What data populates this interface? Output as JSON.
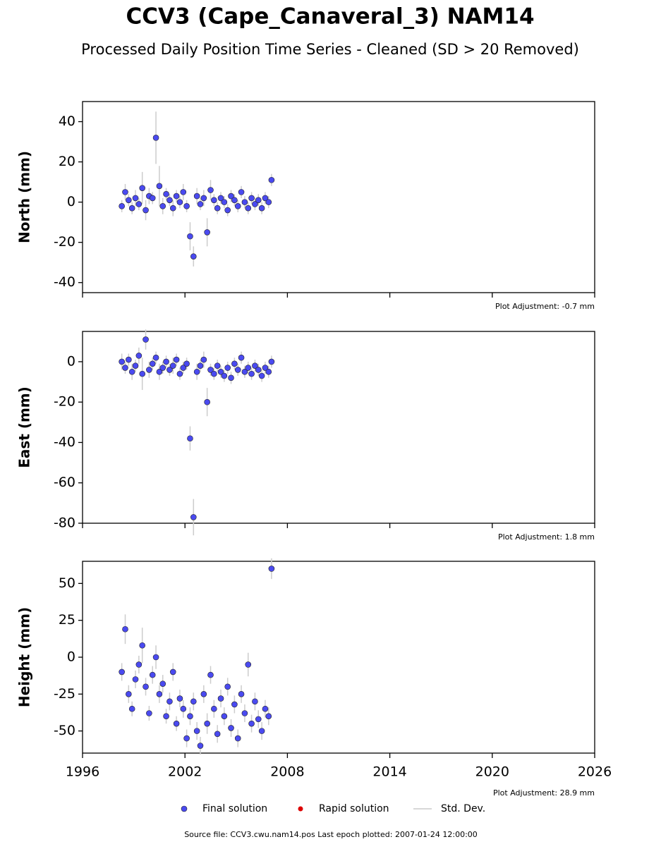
{
  "title": "CCV3 (Cape_Canaveral_3) NAM14",
  "subtitle": "Processed Daily Position Time Series - Cleaned (SD > 20 Removed)",
  "legend": [
    {
      "name": "Final solution",
      "color": "#4a4af0"
    },
    {
      "name": "Rapid solution",
      "color": "#dd0000"
    },
    {
      "name": "Std. Dev.",
      "color": "#cccccc"
    }
  ],
  "source": "Source file: CCV3.cwu.nam14.pos  Last epoch plotted: 2007-01-24 12:00:00",
  "chart_data": [
    {
      "type": "scatter",
      "y_label": "North (mm)",
      "annotation": "Plot Adjustment: -0.7 mm",
      "color": "#4a4af0",
      "error_color": "#cccccc",
      "x": [
        1998.3,
        1998.5,
        1998.7,
        1998.9,
        1999.1,
        1999.3,
        1999.5,
        1999.7,
        1999.9,
        2000.1,
        2000.3,
        2000.5,
        2000.7,
        2000.9,
        2001.1,
        2001.3,
        2001.5,
        2001.7,
        2001.9,
        2002.1,
        2002.3,
        2002.5,
        2002.7,
        2002.9,
        2003.1,
        2003.3,
        2003.5,
        2003.7,
        2003.9,
        2004.1,
        2004.3,
        2004.5,
        2004.7,
        2004.9,
        2005.1,
        2005.3,
        2005.5,
        2005.7,
        2005.9,
        2006.1,
        2006.3,
        2006.5,
        2006.7,
        2006.9,
        2007.07
      ],
      "values": [
        -2,
        5,
        1,
        -3,
        2,
        -1,
        7,
        -4,
        3,
        2,
        32,
        8,
        -2,
        4,
        1,
        -3,
        3,
        0,
        5,
        -2,
        -17,
        -27,
        3,
        -1,
        2,
        -15,
        6,
        1,
        -3,
        2,
        0,
        -4,
        3,
        1,
        -2,
        5,
        0,
        -3,
        2,
        -1,
        1,
        -3,
        2,
        0,
        11
      ],
      "errors": [
        3,
        4,
        3,
        3,
        4,
        3,
        8,
        5,
        4,
        3,
        13,
        10,
        4,
        3,
        3,
        4,
        3,
        3,
        4,
        3,
        7,
        5,
        4,
        3,
        4,
        7,
        5,
        3,
        3,
        3,
        3,
        3,
        3,
        3,
        3,
        3,
        3,
        3,
        3,
        3,
        3,
        3,
        3,
        3,
        3
      ],
      "xlim": [
        1996,
        2026
      ],
      "ylim": [
        -45,
        50
      ],
      "yticks": [
        -40,
        -20,
        0,
        20,
        40
      ]
    },
    {
      "type": "scatter",
      "y_label": "East (mm)",
      "annotation": "Plot Adjustment: 1.8 mm",
      "color": "#4a4af0",
      "error_color": "#cccccc",
      "x": [
        1998.3,
        1998.5,
        1998.7,
        1998.9,
        1999.1,
        1999.3,
        1999.5,
        1999.7,
        1999.9,
        2000.1,
        2000.3,
        2000.5,
        2000.7,
        2000.9,
        2001.1,
        2001.3,
        2001.5,
        2001.7,
        2001.9,
        2002.1,
        2002.3,
        2002.5,
        2002.7,
        2002.9,
        2003.1,
        2003.3,
        2003.5,
        2003.7,
        2003.9,
        2004.1,
        2004.3,
        2004.5,
        2004.7,
        2004.9,
        2005.1,
        2005.3,
        2005.5,
        2005.7,
        2005.9,
        2006.1,
        2006.3,
        2006.5,
        2006.7,
        2006.9,
        2007.07
      ],
      "values": [
        0,
        -3,
        1,
        -5,
        -2,
        3,
        -6,
        11,
        -4,
        -1,
        2,
        -5,
        -3,
        0,
        -4,
        -2,
        1,
        -6,
        -3,
        -1,
        -38,
        -77,
        -5,
        -2,
        1,
        -20,
        -4,
        -6,
        -2,
        -5,
        -7,
        -3,
        -8,
        -1,
        -4,
        2,
        -5,
        -3,
        -6,
        -2,
        -4,
        -7,
        -3,
        -5,
        0
      ],
      "errors": [
        4,
        3,
        3,
        4,
        3,
        4,
        8,
        5,
        4,
        3,
        3,
        4,
        3,
        3,
        3,
        4,
        3,
        3,
        3,
        3,
        6,
        9,
        4,
        3,
        4,
        7,
        3,
        3,
        3,
        3,
        3,
        3,
        3,
        3,
        3,
        3,
        3,
        3,
        3,
        3,
        3,
        3,
        3,
        3,
        3
      ],
      "xlim": [
        1996,
        2026
      ],
      "ylim": [
        -80,
        15
      ],
      "yticks": [
        -80,
        -60,
        -40,
        -20,
        0
      ]
    },
    {
      "type": "scatter",
      "y_label": "Height (mm)",
      "annotation": "Plot Adjustment: 28.9 mm",
      "color": "#4a4af0",
      "error_color": "#cccccc",
      "x": [
        1998.3,
        1998.5,
        1998.7,
        1998.9,
        1999.1,
        1999.3,
        1999.5,
        1999.7,
        1999.9,
        2000.1,
        2000.3,
        2000.5,
        2000.7,
        2000.9,
        2001.1,
        2001.3,
        2001.5,
        2001.7,
        2001.9,
        2002.1,
        2002.3,
        2002.5,
        2002.7,
        2002.9,
        2003.1,
        2003.3,
        2003.5,
        2003.7,
        2003.9,
        2004.1,
        2004.3,
        2004.5,
        2004.7,
        2004.9,
        2005.1,
        2005.3,
        2005.5,
        2005.7,
        2005.9,
        2006.1,
        2006.3,
        2006.5,
        2006.7,
        2006.9,
        2007.07
      ],
      "values": [
        -10,
        19,
        -25,
        -35,
        -15,
        -5,
        8,
        -20,
        -38,
        -12,
        0,
        -25,
        -18,
        -40,
        -30,
        -10,
        -45,
        -28,
        -35,
        -55,
        -40,
        -30,
        -50,
        -60,
        -25,
        -45,
        -12,
        -35,
        -52,
        -28,
        -40,
        -20,
        -48,
        -32,
        -55,
        -25,
        -38,
        -5,
        -45,
        -30,
        -42,
        -50,
        -35,
        -40,
        60
      ],
      "errors": [
        6,
        10,
        6,
        5,
        6,
        6,
        12,
        6,
        5,
        6,
        8,
        6,
        6,
        5,
        6,
        6,
        5,
        6,
        6,
        6,
        6,
        6,
        6,
        6,
        6,
        7,
        6,
        6,
        6,
        6,
        6,
        6,
        6,
        6,
        6,
        6,
        6,
        8,
        6,
        6,
        6,
        6,
        6,
        6,
        7
      ],
      "xlim": [
        1996,
        2026
      ],
      "ylim": [
        -65,
        65
      ],
      "yticks": [
        -50,
        -25,
        0,
        25,
        50
      ],
      "xticks": [
        1996,
        2002,
        2008,
        2014,
        2020,
        2026
      ]
    }
  ]
}
